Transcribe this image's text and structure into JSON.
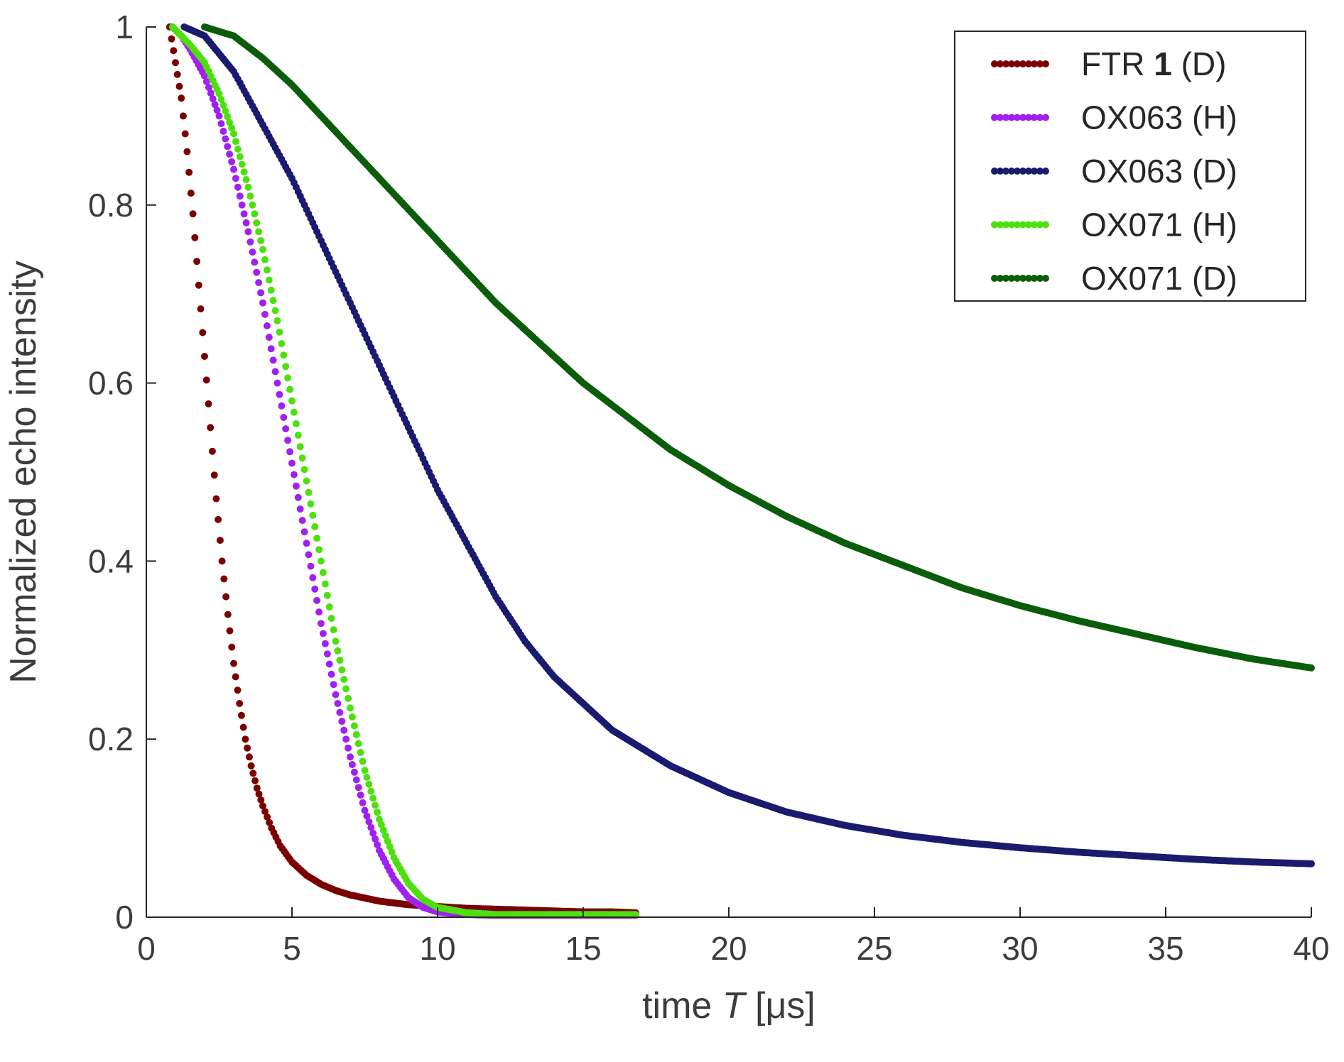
{
  "chart_data": {
    "type": "scatter",
    "title": "",
    "xlabel": {
      "prefix": "time ",
      "italic": "T",
      "suffix": "  [μs]"
    },
    "ylabel": "Normalized echo intensity",
    "xlim": [
      0,
      40
    ],
    "ylim": [
      0,
      1
    ],
    "xticks": [
      0,
      5,
      10,
      15,
      20,
      25,
      30,
      35,
      40
    ],
    "yticks": [
      0,
      0.2,
      0.4,
      0.6,
      0.8,
      1
    ],
    "xtick_labels": [
      "0",
      "5",
      "10",
      "15",
      "20",
      "25",
      "30",
      "35",
      "40"
    ],
    "ytick_labels": [
      "0",
      "0.2",
      "0.4",
      "0.6",
      "0.8",
      "1"
    ],
    "grid": false,
    "legend_position": "top-right",
    "series": [
      {
        "name": "FTR 1 (D)",
        "name_parts": [
          "FTR ",
          "1",
          " (D)"
        ],
        "color": "#7b0000",
        "points": [
          [
            0.8,
            1.0
          ],
          [
            1.0,
            0.96
          ],
          [
            1.2,
            0.92
          ],
          [
            1.4,
            0.86
          ],
          [
            1.6,
            0.79
          ],
          [
            1.8,
            0.71
          ],
          [
            2.0,
            0.63
          ],
          [
            2.2,
            0.55
          ],
          [
            2.4,
            0.47
          ],
          [
            2.6,
            0.4
          ],
          [
            2.8,
            0.34
          ],
          [
            3.0,
            0.285
          ],
          [
            3.2,
            0.24
          ],
          [
            3.4,
            0.2
          ],
          [
            3.6,
            0.17
          ],
          [
            3.8,
            0.145
          ],
          [
            4.0,
            0.125
          ],
          [
            4.3,
            0.1
          ],
          [
            4.6,
            0.08
          ],
          [
            5.0,
            0.062
          ],
          [
            5.5,
            0.047
          ],
          [
            6.0,
            0.037
          ],
          [
            6.5,
            0.03
          ],
          [
            7.0,
            0.025
          ],
          [
            8.0,
            0.018
          ],
          [
            9.0,
            0.014
          ],
          [
            10.0,
            0.012
          ],
          [
            11.0,
            0.01
          ],
          [
            12.0,
            0.009
          ],
          [
            13.0,
            0.008
          ],
          [
            14.0,
            0.007
          ],
          [
            15.0,
            0.006
          ],
          [
            16.0,
            0.006
          ],
          [
            16.8,
            0.005
          ]
        ]
      },
      {
        "name": "OX063 (H)",
        "color": "#a020f0",
        "points": [
          [
            0.9,
            1.0
          ],
          [
            1.2,
            0.99
          ],
          [
            1.5,
            0.975
          ],
          [
            2.0,
            0.945
          ],
          [
            2.5,
            0.9
          ],
          [
            3.0,
            0.84
          ],
          [
            3.5,
            0.77
          ],
          [
            4.0,
            0.69
          ],
          [
            4.5,
            0.6
          ],
          [
            5.0,
            0.51
          ],
          [
            5.5,
            0.42
          ],
          [
            6.0,
            0.33
          ],
          [
            6.5,
            0.25
          ],
          [
            7.0,
            0.18
          ],
          [
            7.5,
            0.12
          ],
          [
            8.0,
            0.075
          ],
          [
            8.5,
            0.043
          ],
          [
            9.0,
            0.022
          ],
          [
            9.5,
            0.011
          ],
          [
            10.0,
            0.006
          ],
          [
            11.0,
            0.003
          ],
          [
            12.0,
            0.002
          ],
          [
            14.0,
            0.002
          ],
          [
            16.8,
            0.002
          ]
        ]
      },
      {
        "name": "OX063 (D)",
        "color": "#1a1a6e",
        "points": [
          [
            1.3,
            1.0
          ],
          [
            2.0,
            0.99
          ],
          [
            3.0,
            0.95
          ],
          [
            4.0,
            0.89
          ],
          [
            5.0,
            0.83
          ],
          [
            6.0,
            0.76
          ],
          [
            7.0,
            0.69
          ],
          [
            8.0,
            0.62
          ],
          [
            9.0,
            0.55
          ],
          [
            10.0,
            0.48
          ],
          [
            11.0,
            0.42
          ],
          [
            12.0,
            0.36
          ],
          [
            13.0,
            0.31
          ],
          [
            14.0,
            0.27
          ],
          [
            15.0,
            0.24
          ],
          [
            16.0,
            0.21
          ],
          [
            17.0,
            0.19
          ],
          [
            18.0,
            0.17
          ],
          [
            19.0,
            0.155
          ],
          [
            20.0,
            0.14
          ],
          [
            22.0,
            0.118
          ],
          [
            24.0,
            0.103
          ],
          [
            26.0,
            0.092
          ],
          [
            28.0,
            0.084
          ],
          [
            30.0,
            0.078
          ],
          [
            32.0,
            0.073
          ],
          [
            34.0,
            0.069
          ],
          [
            36.0,
            0.065
          ],
          [
            38.0,
            0.062
          ],
          [
            40.0,
            0.06
          ]
        ]
      },
      {
        "name": "OX071 (H)",
        "color": "#4ce00f",
        "points": [
          [
            0.9,
            1.0
          ],
          [
            1.2,
            0.99
          ],
          [
            1.5,
            0.98
          ],
          [
            2.0,
            0.96
          ],
          [
            2.5,
            0.925
          ],
          [
            3.0,
            0.88
          ],
          [
            3.5,
            0.82
          ],
          [
            4.0,
            0.75
          ],
          [
            4.5,
            0.67
          ],
          [
            5.0,
            0.58
          ],
          [
            5.5,
            0.49
          ],
          [
            6.0,
            0.4
          ],
          [
            6.5,
            0.31
          ],
          [
            7.0,
            0.235
          ],
          [
            7.5,
            0.165
          ],
          [
            8.0,
            0.11
          ],
          [
            8.5,
            0.067
          ],
          [
            9.0,
            0.038
          ],
          [
            9.5,
            0.02
          ],
          [
            10.0,
            0.011
          ],
          [
            11.0,
            0.005
          ],
          [
            12.0,
            0.003
          ],
          [
            14.0,
            0.003
          ],
          [
            16.8,
            0.003
          ]
        ]
      },
      {
        "name": "OX071 (D)",
        "color": "#0b5c0b",
        "points": [
          [
            2.0,
            1.0
          ],
          [
            3.0,
            0.99
          ],
          [
            4.0,
            0.965
          ],
          [
            5.0,
            0.935
          ],
          [
            6.0,
            0.9
          ],
          [
            7.0,
            0.865
          ],
          [
            8.0,
            0.83
          ],
          [
            9.0,
            0.795
          ],
          [
            10.0,
            0.76
          ],
          [
            11.0,
            0.725
          ],
          [
            12.0,
            0.69
          ],
          [
            13.0,
            0.66
          ],
          [
            14.0,
            0.63
          ],
          [
            15.0,
            0.6
          ],
          [
            16.0,
            0.575
          ],
          [
            17.0,
            0.55
          ],
          [
            18.0,
            0.525
          ],
          [
            19.0,
            0.505
          ],
          [
            20.0,
            0.485
          ],
          [
            22.0,
            0.45
          ],
          [
            24.0,
            0.42
          ],
          [
            26.0,
            0.395
          ],
          [
            28.0,
            0.37
          ],
          [
            30.0,
            0.35
          ],
          [
            32.0,
            0.333
          ],
          [
            34.0,
            0.318
          ],
          [
            36.0,
            0.303
          ],
          [
            38.0,
            0.29
          ],
          [
            40.0,
            0.28
          ]
        ]
      }
    ]
  }
}
